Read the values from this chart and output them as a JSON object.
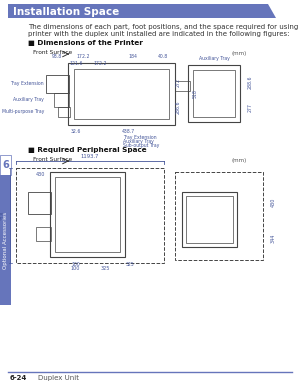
{
  "page_bg": "#ffffff",
  "header_bg": "#6675bb",
  "header_text": "Installation Space",
  "header_text_color": "#ffffff",
  "header_font_size": 7.5,
  "body_text_line1": "The dimensions of each part, foot positions, and the space required for using the",
  "body_text_line2": "printer with the duplex unit installed are indicated in the following figures:",
  "body_font_size": 5.0,
  "body_text_color": "#333333",
  "section1_label": "■ Dimensions of the Printer",
  "section2_label": "■ Required Peripheral Space",
  "section_font_size": 5.2,
  "front_surface_label": "Front Surface",
  "units_label": "(mm)",
  "side_tab_bg": "#6675bb",
  "side_tab_text": "Optional Accessories",
  "side_tab_text_color": "#ffffff",
  "side_number": "6",
  "footer_line_color": "#6675bb",
  "footer_text_left": "6-24",
  "footer_text_right": "Duplex Unit",
  "footer_font_size": 5,
  "dim_color": "#445599",
  "diagram_color": "#444444",
  "dashed_color": "#444444",
  "label_color": "#445599"
}
